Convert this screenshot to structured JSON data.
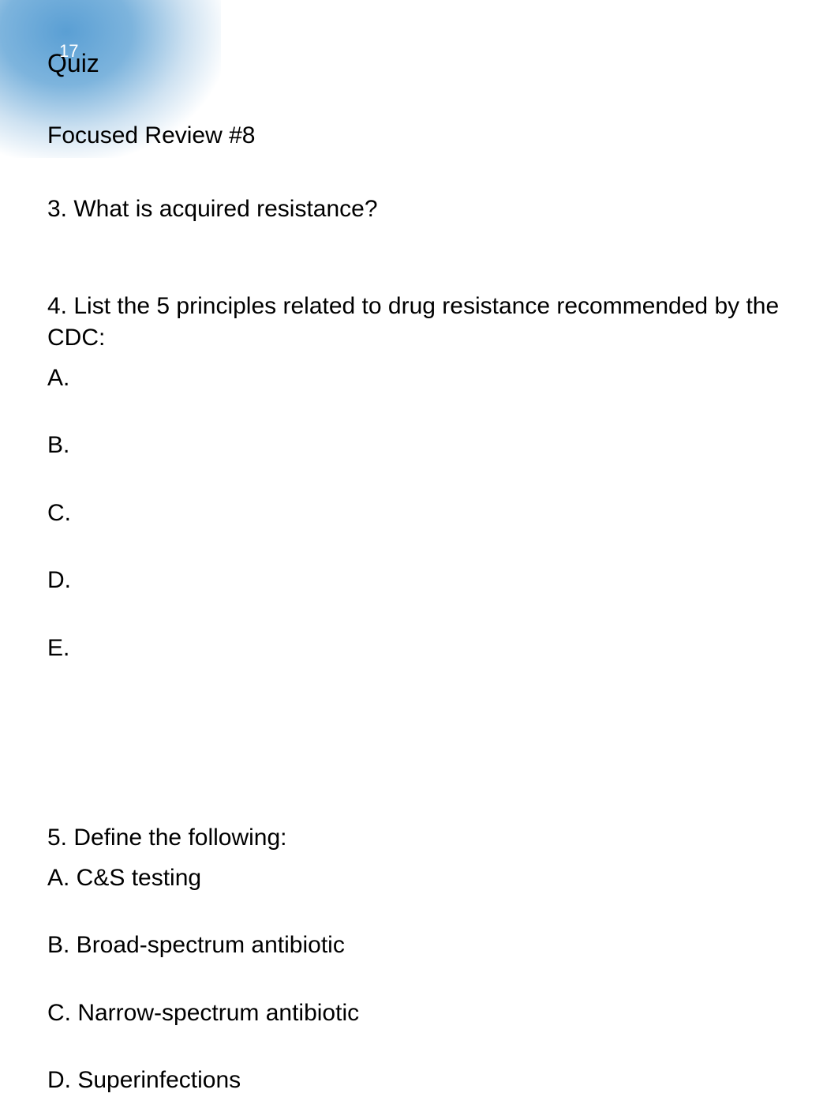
{
  "page": {
    "number": "17",
    "title": "Quiz",
    "subtitle": "Focused Review #8"
  },
  "questions": {
    "q3": {
      "text": "3. What is acquired resistance?"
    },
    "q4": {
      "text": "4. List the 5 principles related to drug resistance recommended by the CDC:",
      "items": {
        "a": "A.",
        "b": "B.",
        "c": "C.",
        "d": "D.",
        "e": "E."
      }
    },
    "q5": {
      "text": "5. Define the following:",
      "items": {
        "a": "A. C&S testing",
        "b": "B. Broad-spectrum antibiotic",
        "c": "C. Narrow-spectrum antibiotic",
        "d": "D. Superinfections"
      }
    }
  },
  "styles": {
    "background_color": "#ffffff",
    "text_color": "#000000",
    "corner_gradient_start": "#5a9fd4",
    "corner_gradient_mid": "#7db4dd",
    "page_number_color": "#ffffff",
    "title_fontsize": 32,
    "body_fontsize": 30,
    "font_family": "Verdana, Geneva, sans-serif"
  }
}
